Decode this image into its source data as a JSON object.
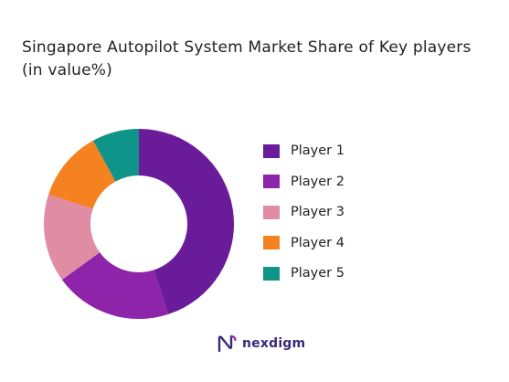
{
  "chart_data": {
    "type": "pie",
    "donut": true,
    "title_lines": [
      "Singapore Autopilot System Market Share of Key players",
      "(in value%)"
    ],
    "categories": [
      "Player 1",
      "Player 2",
      "Player 3",
      "Player 4",
      "Player 5"
    ],
    "values": [
      45,
      20,
      15,
      12,
      8
    ],
    "colors": [
      "#6a1b9a",
      "#8e24aa",
      "#e08ca4",
      "#f58220",
      "#0e9488"
    ],
    "legend_position": "right"
  },
  "brand": {
    "name": "nexdigm",
    "color": "#3a2a7a"
  }
}
